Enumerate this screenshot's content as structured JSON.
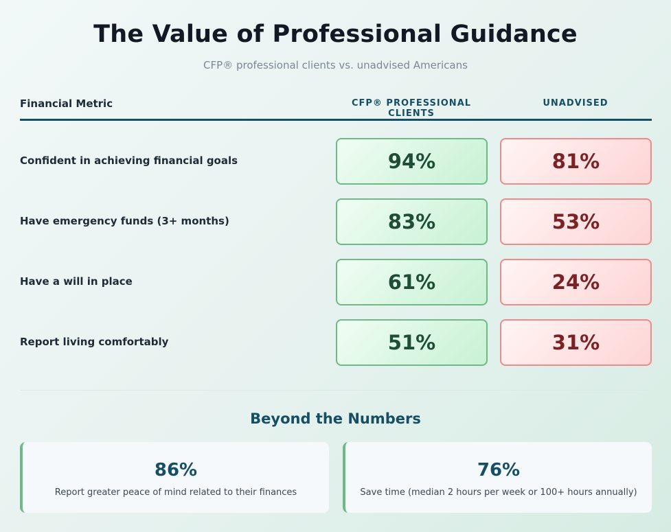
{
  "header": {
    "title": "The Value of Professional Guidance",
    "subtitle": "CFP® professional clients vs. unadvised Americans"
  },
  "table": {
    "columns": {
      "metric": "Financial Metric",
      "cfp": "CFP® PROFESSIONAL CLIENTS",
      "unadvised": "UNADVISED"
    },
    "rows": [
      {
        "metric": "Confident in achieving financial goals",
        "cfp": "94%",
        "unadvised": "81%"
      },
      {
        "metric": "Have emergency funds (3+ months)",
        "cfp": "83%",
        "unadvised": "53%"
      },
      {
        "metric": "Have a will in place",
        "cfp": "61%",
        "unadvised": "24%"
      },
      {
        "metric": "Report living comfortably",
        "cfp": "51%",
        "unadvised": "31%"
      }
    ],
    "colors": {
      "cfp_text": "#1f4d35",
      "cfp_border": "#6fb888",
      "unadvised_text": "#7a2226",
      "unadvised_border": "#ee8a8a"
    }
  },
  "beyond": {
    "title": "Beyond the Numbers",
    "cards": [
      {
        "value": "86%",
        "description": "Report greater peace of mind related to their finances"
      },
      {
        "value": "76%",
        "description": "Save time (median 2 hours per week or 100+ hours annually)"
      }
    ],
    "accent": "#164e63"
  }
}
